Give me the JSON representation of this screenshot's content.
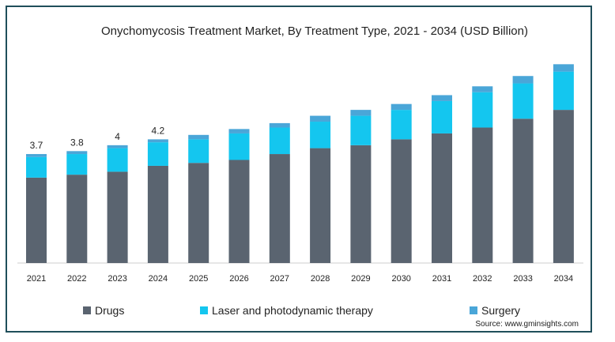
{
  "chart_data": {
    "type": "bar",
    "stacked": true,
    "title": "Onychomycosis Treatment Market, By Treatment Type, 2021 - 2034 (USD Billion)",
    "xlabel": "",
    "ylabel": "",
    "categories": [
      "2021",
      "2022",
      "2023",
      "2024",
      "2025",
      "2026",
      "2027",
      "2028",
      "2029",
      "2030",
      "2031",
      "2032",
      "2033",
      "2034"
    ],
    "series": [
      {
        "name": "Drugs",
        "color": "#5a6470",
        "values": [
          2.9,
          3.0,
          3.1,
          3.3,
          3.4,
          3.5,
          3.7,
          3.9,
          4.0,
          4.2,
          4.4,
          4.6,
          4.9,
          5.2
        ]
      },
      {
        "name": "Laser and photodynamic therapy",
        "color": "#14c6ef",
        "values": [
          0.7,
          0.7,
          0.8,
          0.8,
          0.8,
          0.9,
          0.9,
          0.9,
          1.0,
          1.0,
          1.1,
          1.2,
          1.2,
          1.3
        ]
      },
      {
        "name": "Surgery",
        "color": "#4aa6d8",
        "values": [
          0.1,
          0.1,
          0.1,
          0.1,
          0.15,
          0.15,
          0.15,
          0.2,
          0.2,
          0.2,
          0.2,
          0.2,
          0.25,
          0.25
        ]
      }
    ],
    "data_labels": [
      {
        "category": "2021",
        "text": "3.7"
      },
      {
        "category": "2022",
        "text": "3.8"
      },
      {
        "category": "2023",
        "text": "4"
      },
      {
        "category": "2024",
        "text": "4.2"
      }
    ],
    "ylim": [
      0,
      7
    ],
    "grid": false,
    "legend_position": "bottom",
    "source": "Source: www.gminsights.com"
  }
}
